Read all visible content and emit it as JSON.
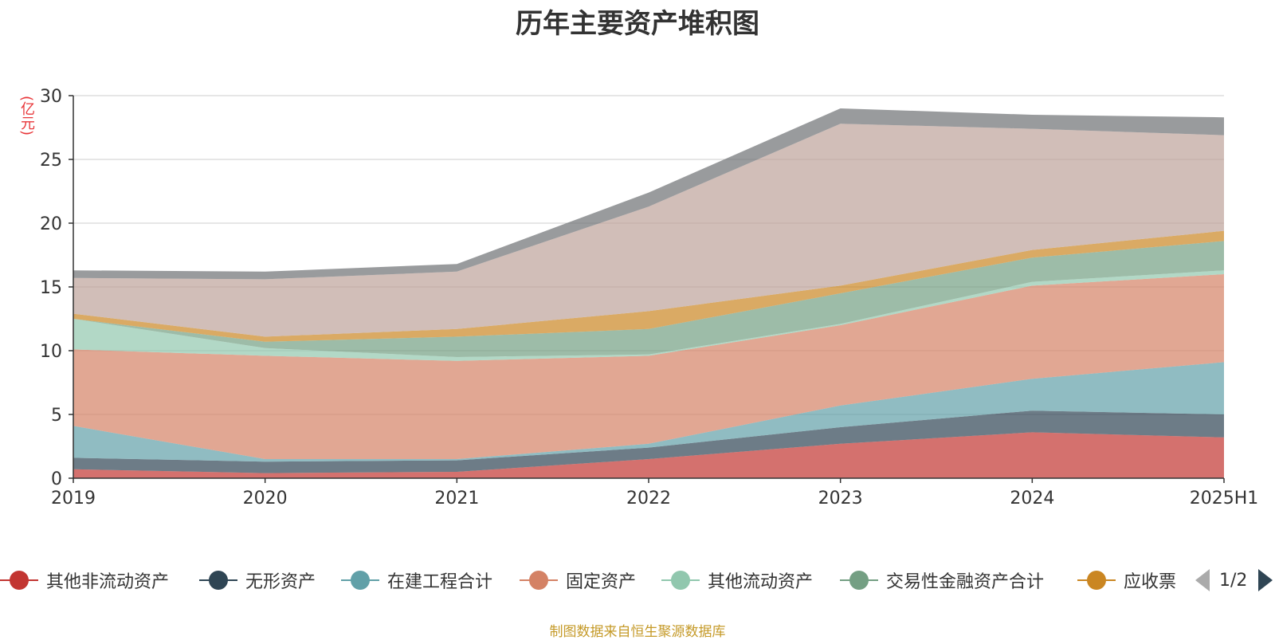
{
  "chart_data": {
    "type": "area",
    "stacked": true,
    "title": "历年主要资产堆积图",
    "ylabel": "(亿元)",
    "xlabel": "",
    "ylim": [
      0,
      30
    ],
    "yticks": [
      0,
      5,
      10,
      15,
      20,
      25,
      30
    ],
    "grid": true,
    "categories": [
      "2019",
      "2020",
      "2021",
      "2022",
      "2023",
      "2024",
      "2025H1"
    ],
    "series": [
      {
        "name": "其他非流动资产",
        "color": "#c23531",
        "values": [
          0.7,
          0.4,
          0.5,
          1.5,
          2.7,
          3.6,
          3.2
        ]
      },
      {
        "name": "无形资产",
        "color": "#2f4554",
        "values": [
          0.9,
          0.9,
          0.9,
          0.9,
          1.3,
          1.7,
          1.8
        ]
      },
      {
        "name": "在建工程合计",
        "color": "#61a0a8",
        "values": [
          2.5,
          0.2,
          0.1,
          0.3,
          1.7,
          2.5,
          4.1
        ]
      },
      {
        "name": "固定资产",
        "color": "#d48265",
        "values": [
          6.0,
          8.1,
          7.7,
          6.9,
          6.3,
          7.3,
          6.9
        ]
      },
      {
        "name": "其他流动资产",
        "color": "#91c7ae",
        "values": [
          2.4,
          0.6,
          0.3,
          0.1,
          0.1,
          0.3,
          0.3
        ]
      },
      {
        "name": "交易性金融资产合计",
        "color": "#749f83",
        "values": [
          0.0,
          0.5,
          1.6,
          2.0,
          2.4,
          1.9,
          2.3
        ]
      },
      {
        "name": "应收票据",
        "color": "#ca8622",
        "values": [
          0.4,
          0.4,
          0.6,
          1.4,
          0.6,
          0.6,
          0.8
        ]
      },
      {
        "color": "#bda29a",
        "values": [
          2.8,
          4.5,
          4.5,
          8.2,
          12.7,
          9.5,
          7.5
        ]
      },
      {
        "color": "#6e7074",
        "values": [
          0.6,
          0.6,
          0.6,
          1.1,
          1.2,
          1.1,
          1.4
        ]
      }
    ]
  },
  "legend": {
    "items": [
      {
        "label": "其他非流动资产",
        "color": "#c23531"
      },
      {
        "label": "无形资产",
        "color": "#2f4554"
      },
      {
        "label": "在建工程合计",
        "color": "#61a0a8"
      },
      {
        "label": "固定资产",
        "color": "#d48265"
      },
      {
        "label": "其他流动资产",
        "color": "#91c7ae"
      },
      {
        "label": "交易性金融资产合计",
        "color": "#749f83"
      },
      {
        "label": "应收票",
        "color": "#ca8622"
      }
    ],
    "page": "1/2"
  },
  "source": "制图数据来自恒生聚源数据库"
}
